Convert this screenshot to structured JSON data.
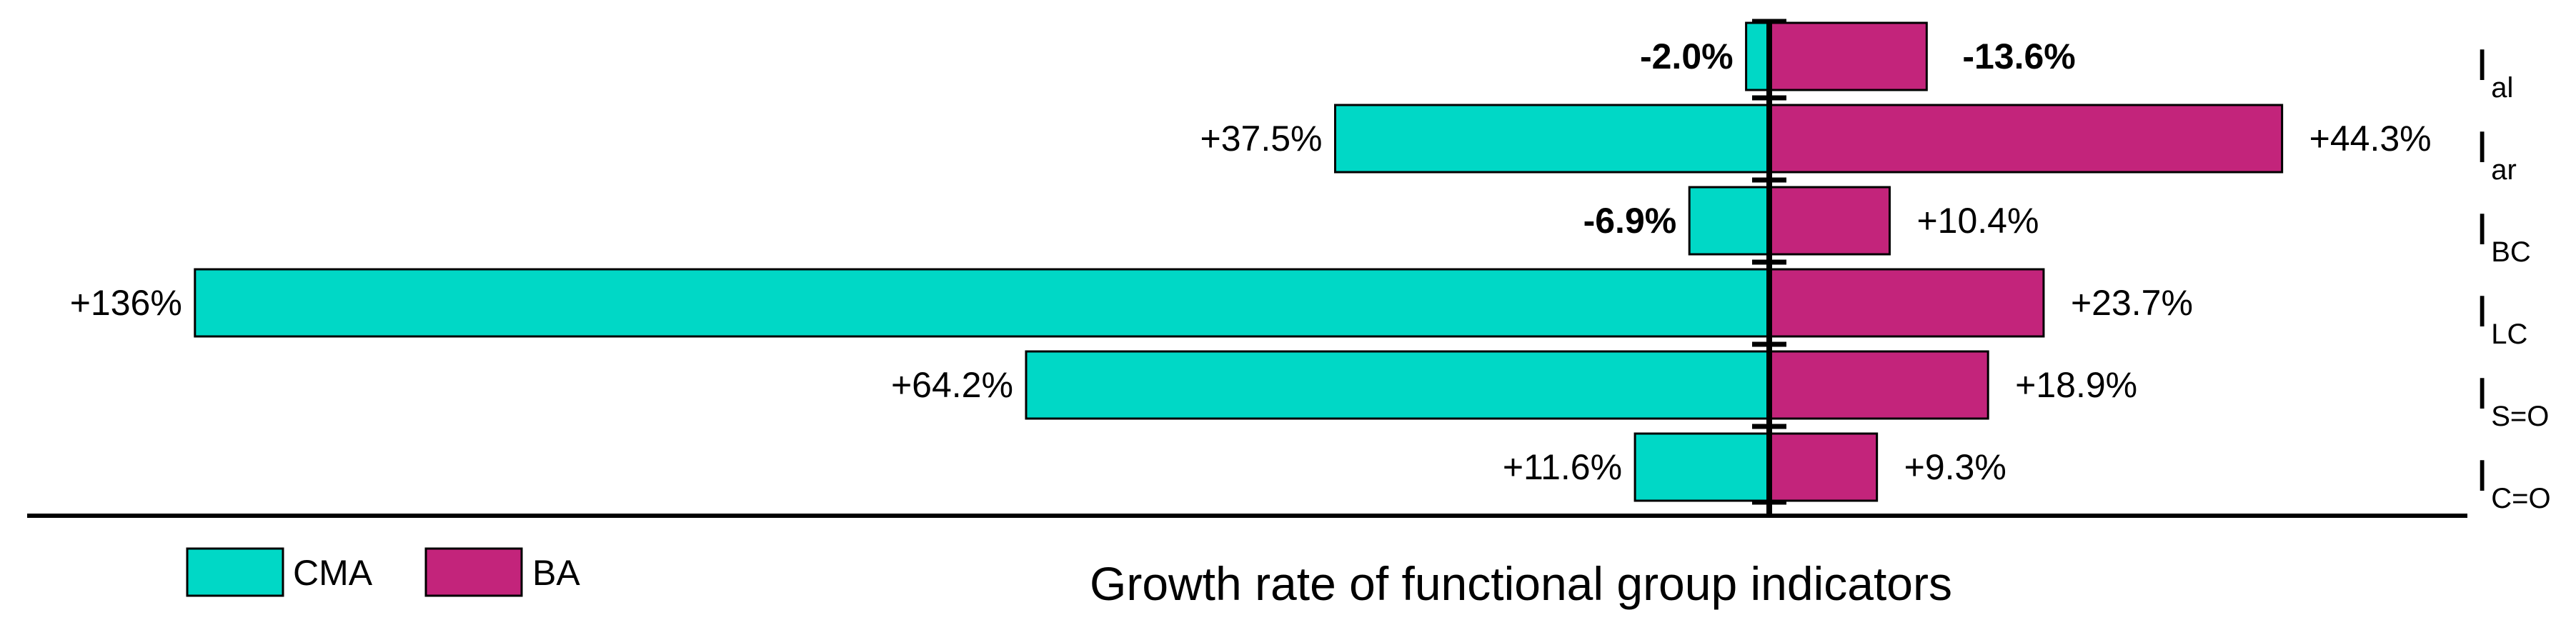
{
  "chart_data": {
    "type": "bar",
    "orientation": "horizontal-diverging",
    "title": "Growth rate of functional group indicators",
    "categories": [
      {
        "main": "I",
        "sub": "al"
      },
      {
        "main": "I",
        "sub": "ar"
      },
      {
        "main": "I",
        "sub": "BC"
      },
      {
        "main": "I",
        "sub": "LC"
      },
      {
        "main": "I",
        "sub": "S=O"
      },
      {
        "main": "I",
        "sub": "C=O"
      }
    ],
    "series": [
      {
        "name": "CMA",
        "direction": "left",
        "color": "#00d8c6",
        "values": [
          -2.0,
          37.5,
          -6.9,
          136,
          64.2,
          11.6
        ],
        "labels": [
          "-2.0%",
          "+37.5%",
          "-6.9%",
          "+136%",
          "+64.2%",
          "+11.6%"
        ]
      },
      {
        "name": "BA",
        "direction": "right",
        "color": "#c3247b",
        "values": [
          -13.6,
          44.3,
          10.4,
          23.7,
          18.9,
          9.3
        ],
        "labels": [
          "-13.6%",
          "+44.3%",
          "+10.4%",
          "+23.7%",
          "+18.9%",
          "+9.3%"
        ]
      }
    ],
    "negative_label_color": "#e8202a",
    "legend": {
      "placement": "bottom-left",
      "entries": [
        "CMA",
        "BA"
      ]
    },
    "grid": false
  }
}
